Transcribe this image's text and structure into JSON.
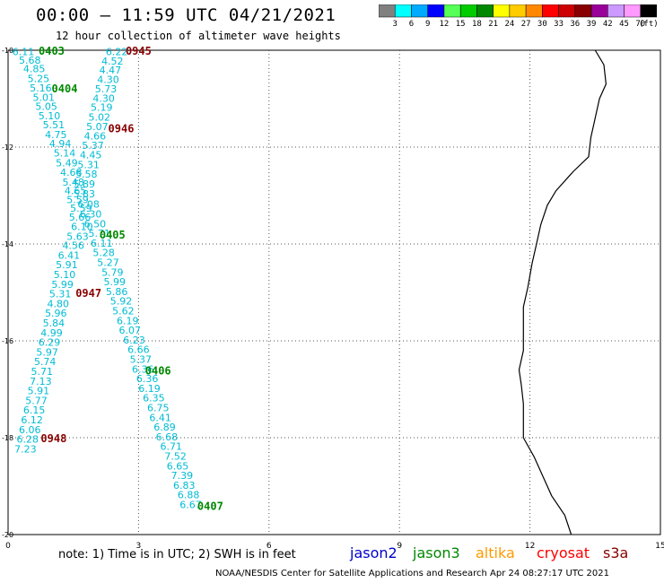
{
  "title": "00:00 – 11:59 UTC 04/21/2021",
  "subtitle": "12 hour collection of altimeter wave heights",
  "color_scale": {
    "labels": [
      "3",
      "6",
      "9",
      "12",
      "15",
      "18",
      "21",
      "24",
      "27",
      "30",
      "33",
      "36",
      "39",
      "42",
      "45",
      "70"
    ],
    "unit": "(ft)",
    "colors": [
      "#808080",
      "#00ffff",
      "#00aaff",
      "#0000ff",
      "#55ff55",
      "#00cc00",
      "#008800",
      "#ffff00",
      "#ffcc00",
      "#ff8800",
      "#ff0000",
      "#cc0000",
      "#880000",
      "#990099",
      "#cc99ff",
      "#ff99ff",
      "#000000"
    ]
  },
  "axes": {
    "x_ticks": [
      "0",
      "3",
      "6",
      "9",
      "12",
      "15"
    ],
    "y_ticks": [
      "-10",
      "-12",
      "-14",
      "-16",
      "-18",
      "-20"
    ]
  },
  "map": {
    "region": "coastline",
    "wave_heights": [
      {
        "lon": 0.35,
        "lat": -10.03,
        "v": "6.11"
      },
      {
        "lon": 0.5,
        "lat": -10.2,
        "v": "5.68"
      },
      {
        "lon": 0.6,
        "lat": -10.38,
        "v": "4.85"
      },
      {
        "lon": 0.7,
        "lat": -10.58,
        "v": "5.25"
      },
      {
        "lon": 0.75,
        "lat": -10.78,
        "v": "5.16"
      },
      {
        "lon": 0.82,
        "lat": -10.97,
        "v": "5.01"
      },
      {
        "lon": 0.88,
        "lat": -11.16,
        "v": "5.05"
      },
      {
        "lon": 0.95,
        "lat": -11.35,
        "v": "5.10"
      },
      {
        "lon": 1.05,
        "lat": -11.54,
        "v": "5.51"
      },
      {
        "lon": 1.1,
        "lat": -11.74,
        "v": "4.75"
      },
      {
        "lon": 1.2,
        "lat": -11.93,
        "v": "4.94"
      },
      {
        "lon": 1.3,
        "lat": -12.12,
        "v": "5.14"
      },
      {
        "lon": 1.35,
        "lat": -12.32,
        "v": "5.49"
      },
      {
        "lon": 1.45,
        "lat": -12.52,
        "v": "4.68"
      },
      {
        "lon": 1.5,
        "lat": -12.72,
        "v": "5.48"
      },
      {
        "lon": 1.55,
        "lat": -12.9,
        "v": "4.65"
      },
      {
        "lon": 1.6,
        "lat": -13.08,
        "v": "5.59"
      },
      {
        "lon": 1.68,
        "lat": -13.26,
        "v": "5.59"
      },
      {
        "lon": 1.65,
        "lat": -13.44,
        "v": "5.66"
      },
      {
        "lon": 1.7,
        "lat": -13.64,
        "v": "6.10"
      },
      {
        "lon": 1.6,
        "lat": -13.84,
        "v": "5.63"
      },
      {
        "lon": 1.5,
        "lat": -14.03,
        "v": "4.56"
      },
      {
        "lon": 1.4,
        "lat": -14.23,
        "v": "6.41"
      },
      {
        "lon": 1.35,
        "lat": -14.43,
        "v": "5.91"
      },
      {
        "lon": 1.3,
        "lat": -14.63,
        "v": "5.10"
      },
      {
        "lon": 1.25,
        "lat": -14.83,
        "v": "5.99"
      },
      {
        "lon": 1.2,
        "lat": -15.03,
        "v": "5.31"
      },
      {
        "lon": 1.15,
        "lat": -15.23,
        "v": "4.80"
      },
      {
        "lon": 1.1,
        "lat": -15.43,
        "v": "5.96"
      },
      {
        "lon": 1.05,
        "lat": -15.63,
        "v": "5.84"
      },
      {
        "lon": 1.0,
        "lat": -15.83,
        "v": "4.99"
      },
      {
        "lon": 0.95,
        "lat": -16.03,
        "v": "6.29"
      },
      {
        "lon": 0.9,
        "lat": -16.23,
        "v": "5.97"
      },
      {
        "lon": 0.85,
        "lat": -16.43,
        "v": "5.74"
      },
      {
        "lon": 0.78,
        "lat": -16.63,
        "v": "5.71"
      },
      {
        "lon": 0.75,
        "lat": -16.83,
        "v": "7.13"
      },
      {
        "lon": 0.7,
        "lat": -17.03,
        "v": "5.91"
      },
      {
        "lon": 0.65,
        "lat": -17.23,
        "v": "5.77"
      },
      {
        "lon": 0.6,
        "lat": -17.43,
        "v": "6.15"
      },
      {
        "lon": 0.55,
        "lat": -17.63,
        "v": "6.12"
      },
      {
        "lon": 0.5,
        "lat": -17.83,
        "v": "6.06"
      },
      {
        "lon": 0.45,
        "lat": -18.03,
        "v": "6.28"
      },
      {
        "lon": 0.4,
        "lat": -18.23,
        "v": "7.23"
      },
      {
        "lon": 2.5,
        "lat": -10.03,
        "v": "6.22"
      },
      {
        "lon": 2.4,
        "lat": -10.22,
        "v": "4.52"
      },
      {
        "lon": 2.35,
        "lat": -10.41,
        "v": "4.47"
      },
      {
        "lon": 2.3,
        "lat": -10.6,
        "v": "4.30"
      },
      {
        "lon": 2.25,
        "lat": -10.8,
        "v": "5.73"
      },
      {
        "lon": 2.2,
        "lat": -10.99,
        "v": "4.30"
      },
      {
        "lon": 2.15,
        "lat": -11.18,
        "v": "5.19"
      },
      {
        "lon": 2.1,
        "lat": -11.38,
        "v": "5.02"
      },
      {
        "lon": 2.05,
        "lat": -11.57,
        "v": "5.07"
      },
      {
        "lon": 2.0,
        "lat": -11.77,
        "v": "4.66"
      },
      {
        "lon": 1.95,
        "lat": -11.96,
        "v": "5.37"
      },
      {
        "lon": 1.9,
        "lat": -12.16,
        "v": "4.45"
      },
      {
        "lon": 1.85,
        "lat": -12.36,
        "v": "5.31"
      },
      {
        "lon": 1.8,
        "lat": -12.56,
        "v": "5.58"
      },
      {
        "lon": 1.75,
        "lat": -12.76,
        "v": "5.89"
      },
      {
        "lon": 1.75,
        "lat": -12.96,
        "v": "5.83"
      },
      {
        "lon": 1.85,
        "lat": -13.18,
        "v": "6.08"
      },
      {
        "lon": 1.9,
        "lat": -13.38,
        "v": "6.30"
      },
      {
        "lon": 2.0,
        "lat": -13.58,
        "v": "6.50"
      },
      {
        "lon": 2.1,
        "lat": -13.78,
        "v": "5.71"
      },
      {
        "lon": 2.15,
        "lat": -13.98,
        "v": "6.11"
      },
      {
        "lon": 2.2,
        "lat": -14.18,
        "v": "5.28"
      },
      {
        "lon": 2.3,
        "lat": -14.38,
        "v": "5.27"
      },
      {
        "lon": 2.4,
        "lat": -14.58,
        "v": "5.79"
      },
      {
        "lon": 2.45,
        "lat": -14.78,
        "v": "5.99"
      },
      {
        "lon": 2.5,
        "lat": -14.98,
        "v": "5.86"
      },
      {
        "lon": 2.6,
        "lat": -15.18,
        "v": "5.92"
      },
      {
        "lon": 2.65,
        "lat": -15.38,
        "v": "5.62"
      },
      {
        "lon": 2.75,
        "lat": -15.58,
        "v": "6.19"
      },
      {
        "lon": 2.8,
        "lat": -15.78,
        "v": "6.07"
      },
      {
        "lon": 2.9,
        "lat": -15.98,
        "v": "6.23"
      },
      {
        "lon": 3.0,
        "lat": -16.18,
        "v": "6.66"
      },
      {
        "lon": 3.05,
        "lat": -16.38,
        "v": "5.37"
      },
      {
        "lon": 3.1,
        "lat": -16.58,
        "v": "6.36"
      },
      {
        "lon": 3.2,
        "lat": -16.78,
        "v": "6.36"
      },
      {
        "lon": 3.25,
        "lat": -16.98,
        "v": "6.19"
      },
      {
        "lon": 3.35,
        "lat": -17.18,
        "v": "6.35"
      },
      {
        "lon": 3.45,
        "lat": -17.38,
        "v": "6.75"
      },
      {
        "lon": 3.5,
        "lat": -17.58,
        "v": "6.41"
      },
      {
        "lon": 3.6,
        "lat": -17.78,
        "v": "6.89"
      },
      {
        "lon": 3.65,
        "lat": -17.98,
        "v": "6.68"
      },
      {
        "lon": 3.75,
        "lat": -18.18,
        "v": "6.71"
      },
      {
        "lon": 3.85,
        "lat": -18.38,
        "v": "7.52"
      },
      {
        "lon": 3.9,
        "lat": -18.58,
        "v": "6.65"
      },
      {
        "lon": 4.0,
        "lat": -18.78,
        "v": "7.39"
      },
      {
        "lon": 4.05,
        "lat": -18.98,
        "v": "6.83"
      },
      {
        "lon": 4.15,
        "lat": -19.18,
        "v": "6.88"
      },
      {
        "lon": 4.2,
        "lat": -19.38,
        "v": "6.67"
      }
    ],
    "pass_times": [
      {
        "lon": 1.0,
        "lat": -10.0,
        "t": "0403",
        "color": "#008800"
      },
      {
        "lon": 3.0,
        "lat": -10.0,
        "t": "0945",
        "color": "#880000"
      },
      {
        "lon": 1.3,
        "lat": -10.78,
        "t": "0404",
        "color": "#008800"
      },
      {
        "lon": 2.6,
        "lat": -11.6,
        "t": "0946",
        "color": "#880000"
      },
      {
        "lon": 2.4,
        "lat": -13.8,
        "t": "0405",
        "color": "#008800"
      },
      {
        "lon": 1.85,
        "lat": -15.0,
        "t": "0947",
        "color": "#880000"
      },
      {
        "lon": 3.45,
        "lat": -16.6,
        "t": "0406",
        "color": "#008800"
      },
      {
        "lon": 1.05,
        "lat": -18.0,
        "t": "0948",
        "color": "#880000"
      },
      {
        "lon": 4.65,
        "lat": -19.4,
        "t": "0407",
        "color": "#008800"
      }
    ],
    "coastline": [
      [
        13.5,
        -10.0
      ],
      [
        13.7,
        -10.3
      ],
      [
        13.75,
        -10.7
      ],
      [
        13.6,
        -11.0
      ],
      [
        13.5,
        -11.4
      ],
      [
        13.4,
        -11.8
      ],
      [
        13.35,
        -12.2
      ],
      [
        13.0,
        -12.5
      ],
      [
        12.6,
        -12.9
      ],
      [
        12.4,
        -13.2
      ],
      [
        12.25,
        -13.6
      ],
      [
        12.15,
        -14.0
      ],
      [
        12.05,
        -14.4
      ],
      [
        11.95,
        -14.9
      ],
      [
        11.85,
        -15.3
      ],
      [
        11.85,
        -15.9
      ],
      [
        11.85,
        -16.2
      ],
      [
        11.75,
        -16.6
      ],
      [
        11.8,
        -16.9
      ],
      [
        11.85,
        -17.3
      ],
      [
        11.85,
        -17.7
      ],
      [
        11.85,
        -18.0
      ],
      [
        12.1,
        -18.4
      ],
      [
        12.3,
        -18.8
      ],
      [
        12.5,
        -19.2
      ],
      [
        12.8,
        -19.6
      ],
      [
        12.95,
        -20.0
      ]
    ]
  },
  "note": "note: 1) Time is in UTC; 2) SWH is in feet",
  "legend": [
    {
      "label": "jason2",
      "color": "#0000cc"
    },
    {
      "label": "jason3",
      "color": "#008800"
    },
    {
      "label": "altika",
      "color": "#ff9900"
    },
    {
      "label": "cryosat",
      "color": "#ff0000"
    },
    {
      "label": "s3a",
      "color": "#880000"
    }
  ],
  "credit": "NOAA/NESDIS Center for Satellite Applications and Research    Apr 24 08:27:17 UTC 2021"
}
